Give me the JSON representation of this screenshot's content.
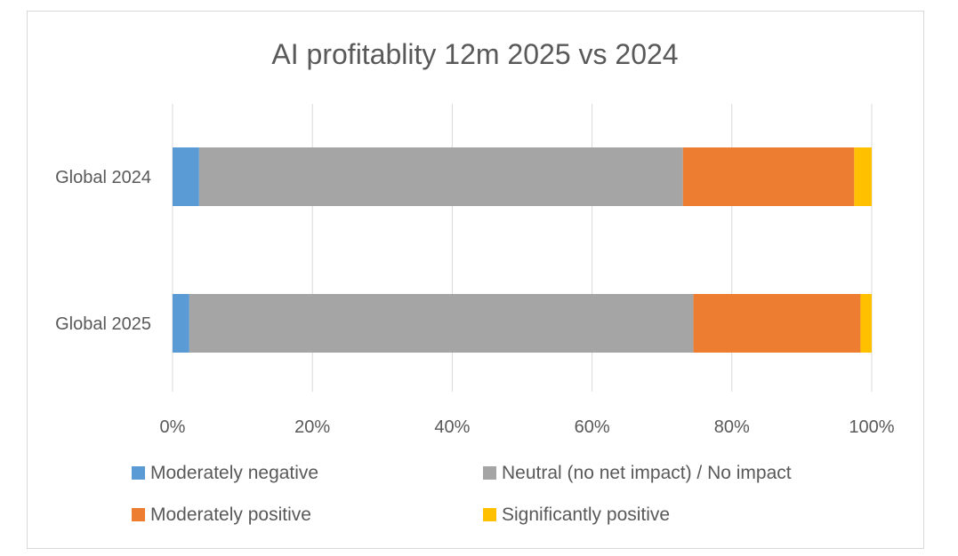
{
  "chart_data": {
    "type": "bar",
    "orientation": "horizontal",
    "stacked": "percent",
    "title": "AI profitablity 12m 2025 vs 2024",
    "categories": [
      "Global 2024",
      "Global 2025"
    ],
    "series": [
      {
        "name": "Moderately negative",
        "color": "#5b9bd5",
        "values": [
          3.8,
          2.4
        ]
      },
      {
        "name": "Neutral (no net impact) / No impact",
        "color": "#a5a5a5",
        "values": [
          69.2,
          72.1
        ]
      },
      {
        "name": "Moderately positive",
        "color": "#ed7d31",
        "values": [
          24.5,
          23.9
        ]
      },
      {
        "name": "Significantly positive",
        "color": "#ffc000",
        "values": [
          2.5,
          1.6
        ]
      }
    ],
    "xlim": [
      0,
      100
    ],
    "x_ticks": [
      "0%",
      "20%",
      "40%",
      "60%",
      "80%",
      "100%"
    ],
    "grid": true,
    "legend_position": "bottom"
  }
}
